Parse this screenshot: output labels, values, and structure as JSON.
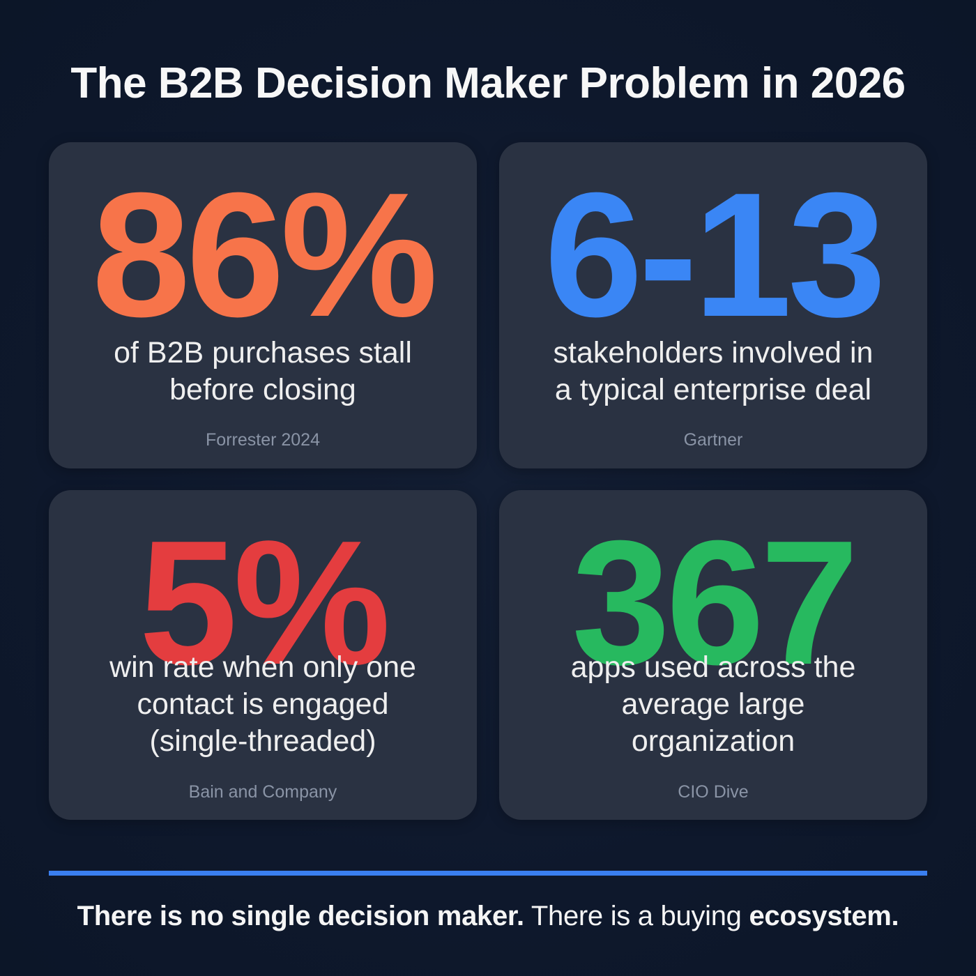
{
  "title": "The B2B Decision Maker Problem in 2026",
  "colors": {
    "background": "#0f1a2f",
    "card": "#2a3242",
    "orange": "#f7744a",
    "blue": "#3a86f5",
    "red": "#e43d3f",
    "green": "#27b95f",
    "divider": "#3a7ff0",
    "source_text": "#8a94a6"
  },
  "cards": [
    {
      "stat": "86%",
      "color": "#f7744a",
      "description_lines": [
        "of B2B purchases stall",
        "before closing"
      ],
      "source": "Forrester 2024"
    },
    {
      "stat": "6-13",
      "color": "#3a86f5",
      "description_lines": [
        "stakeholders involved in",
        "a typical enterprise deal"
      ],
      "source": "Gartner"
    },
    {
      "stat": "5%",
      "color": "#e43d3f",
      "description_lines": [
        "win rate when only one",
        "contact is engaged",
        "(single-threaded)"
      ],
      "source": "Bain and Company"
    },
    {
      "stat": "367",
      "color": "#27b95f",
      "description_lines": [
        "apps used across the",
        "average large",
        "organization"
      ],
      "source": "CIO Dive"
    }
  ],
  "footer": {
    "part1_bold": "There is no single decision maker.",
    "part2_regular": " There is a buying ",
    "part3_bold": "ecosystem."
  }
}
